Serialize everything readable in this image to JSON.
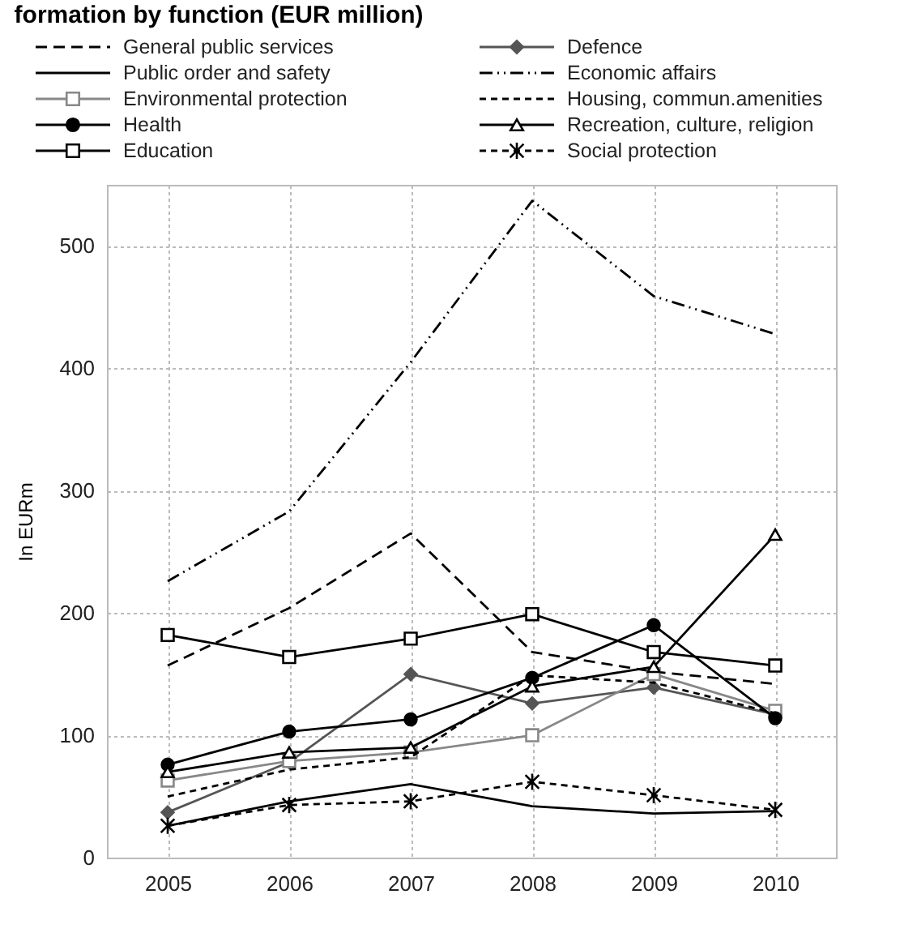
{
  "chart_data": {
    "type": "line",
    "title": "formation by function (EUR million)",
    "ylabel": "In EURm",
    "categories": [
      "2005",
      "2006",
      "2007",
      "2008",
      "2009",
      "2010"
    ],
    "ylim": [
      0,
      550
    ],
    "yticks": [
      0,
      100,
      200,
      300,
      400,
      500
    ],
    "grid": true,
    "legend": "top",
    "series": [
      {
        "name": "General public services",
        "color": "#000000",
        "line_style": "dashed",
        "marker": "none",
        "values": [
          157,
          204,
          265,
          168,
          152,
          142
        ]
      },
      {
        "name": "Defence",
        "color": "#555555",
        "line_style": "solid",
        "marker": "diamond",
        "values": [
          37,
          78,
          150,
          126,
          139,
          117
        ]
      },
      {
        "name": "Public order and safety",
        "color": "#000000",
        "line_style": "solid",
        "marker": "none",
        "values": [
          26,
          46,
          60,
          42,
          36,
          38
        ]
      },
      {
        "name": "Economic affairs",
        "color": "#000000",
        "line_style": "dashdot",
        "marker": "none",
        "values": [
          226,
          283,
          405,
          537,
          459,
          428
        ]
      },
      {
        "name": "Environmental protection",
        "color": "#888888",
        "line_style": "solid",
        "marker": "square",
        "values": [
          63,
          79,
          86,
          100,
          150,
          120
        ]
      },
      {
        "name": "Housing, commun.amenities",
        "color": "#000000",
        "line_style": "dotted",
        "marker": "none",
        "values": [
          50,
          72,
          82,
          149,
          143,
          118
        ]
      },
      {
        "name": "Health",
        "color": "#000000",
        "line_style": "solid",
        "marker": "circle",
        "values": [
          76,
          103,
          113,
          147,
          190,
          114
        ]
      },
      {
        "name": "Recreation, culture, religion",
        "color": "#000000",
        "line_style": "solid",
        "marker": "triangle",
        "values": [
          70,
          86,
          90,
          140,
          156,
          264
        ]
      },
      {
        "name": "Education",
        "color": "#000000",
        "line_style": "solid",
        "marker": "square",
        "values": [
          182,
          164,
          179,
          199,
          168,
          157
        ]
      },
      {
        "name": "Social protection",
        "color": "#000000",
        "line_style": "dotted",
        "marker": "cross",
        "values": [
          26,
          43,
          46,
          62,
          51,
          39
        ]
      }
    ]
  }
}
